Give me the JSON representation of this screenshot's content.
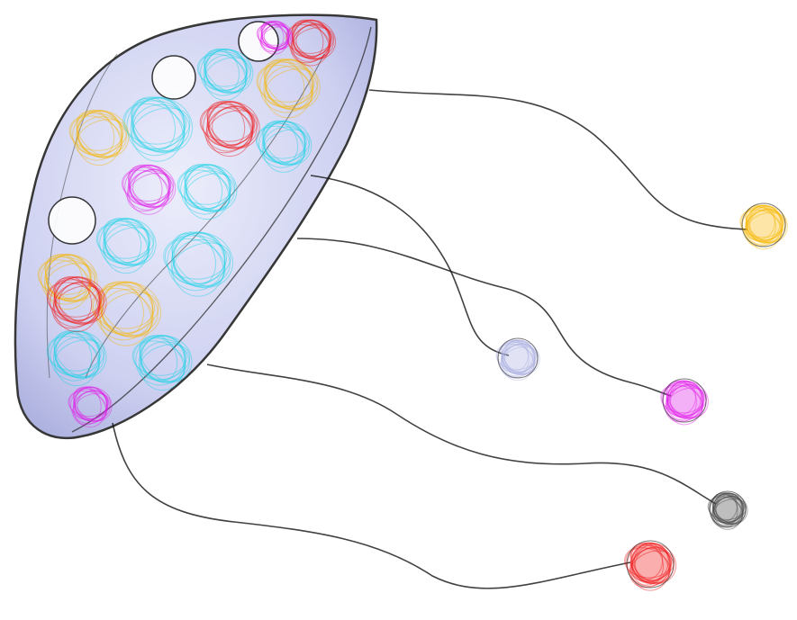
{
  "colors": {
    "background": "#ffffff",
    "dome_fill": "#b8bbe8",
    "edge_dark": "#111111",
    "cyan": "#19d3e6",
    "yellow": "#f7b500",
    "red": "#f01818",
    "magenta": "#e01ee8",
    "lavender": "#aab0e0",
    "gray": "#444444"
  },
  "scene": {
    "subject": "jellyfish-network-graph",
    "clusters": [
      {
        "name": "white-cluster",
        "color": "#ffffff"
      },
      {
        "name": "cyan-cluster",
        "color": "#19d3e6"
      },
      {
        "name": "yellow-cluster",
        "color": "#f7b500"
      },
      {
        "name": "red-cluster",
        "color": "#f01818"
      },
      {
        "name": "magenta-cluster",
        "color": "#e01ee8"
      },
      {
        "name": "lavender-cluster",
        "color": "#aab0e0"
      }
    ],
    "tentacle_ends": [
      {
        "name": "yellow-bulb",
        "color": "#f7b500"
      },
      {
        "name": "lavender-bulb",
        "color": "#aab0e0"
      },
      {
        "name": "magenta-bulb",
        "color": "#e01ee8"
      },
      {
        "name": "gray-bulb",
        "color": "#444444"
      },
      {
        "name": "red-bulb",
        "color": "#f01818"
      }
    ]
  }
}
